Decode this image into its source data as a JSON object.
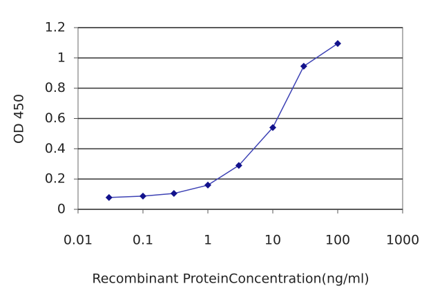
{
  "chart_data": {
    "type": "line",
    "xlabel": "Recombinant ProteinConcentration(ng/ml)",
    "ylabel": "OD 450",
    "x": [
      0.03,
      0.1,
      0.3,
      1,
      3,
      10,
      30,
      100
    ],
    "series": [
      {
        "color": "#3c41b4",
        "marker_color": "#12128c",
        "values": [
          0.078,
          0.087,
          0.105,
          0.16,
          0.29,
          0.54,
          0.945,
          1.095
        ]
      }
    ],
    "xscale": "log",
    "xlim": [
      0.01,
      1000
    ],
    "xticks": [
      0.01,
      0.1,
      1,
      10,
      100,
      1000
    ],
    "ylim": [
      0,
      1.2
    ],
    "yticks": [
      0,
      0.2,
      0.4,
      0.6,
      0.8,
      1,
      1.2
    ],
    "grid": true
  }
}
